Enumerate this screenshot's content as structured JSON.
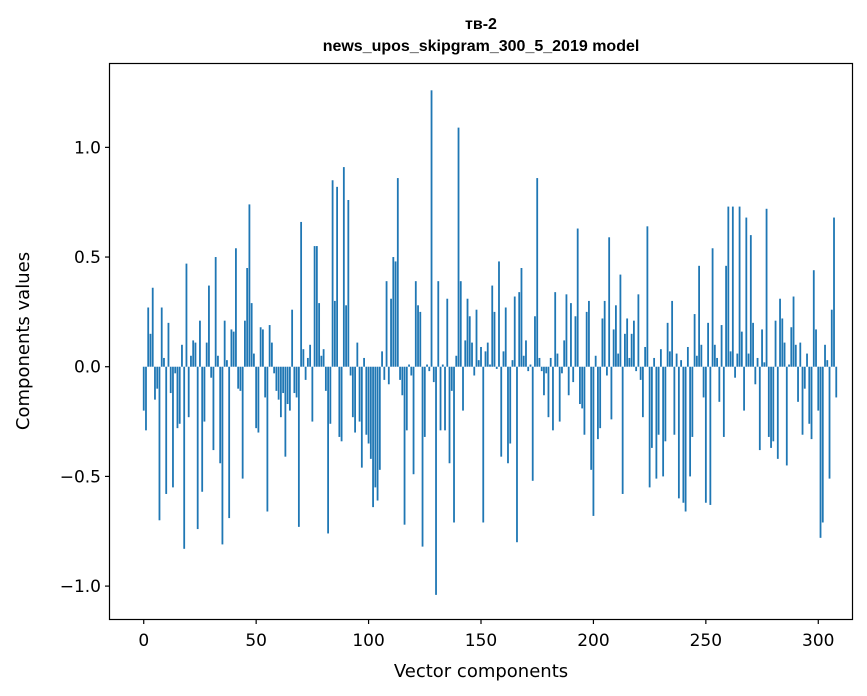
{
  "chart_data": {
    "type": "bar",
    "title": "тв-2",
    "subtitle": "news_upos_skipgram_300_5_2019 model",
    "xlabel": "Vector components",
    "ylabel": "Components values",
    "xlim": [
      -15,
      315
    ],
    "ylim": [
      -1.15,
      1.38
    ],
    "grid": false,
    "bar_color": "#1f77b4",
    "x_ticks": [
      0,
      50,
      100,
      150,
      200,
      250,
      300
    ],
    "x_tick_labels": [
      "0",
      "50",
      "100",
      "150",
      "200",
      "250",
      "300"
    ],
    "y_ticks": [
      -1.0,
      -0.5,
      0.0,
      0.5,
      1.0
    ],
    "y_tick_labels": [
      "−1.0",
      "−0.5",
      "0.0",
      "0.5",
      "1.0"
    ],
    "values": [
      -0.2,
      -0.29,
      0.27,
      0.15,
      0.36,
      -0.15,
      -0.1,
      -0.7,
      0.27,
      0.04,
      -0.58,
      0.2,
      -0.12,
      -0.55,
      -0.03,
      -0.28,
      -0.26,
      0.1,
      -0.83,
      0.47,
      -0.23,
      0.05,
      0.12,
      0.11,
      -0.74,
      0.21,
      -0.57,
      -0.25,
      0.11,
      0.37,
      -0.05,
      -0.38,
      0.5,
      0.05,
      -0.44,
      -0.81,
      0.21,
      0.03,
      -0.69,
      0.17,
      0.16,
      0.54,
      -0.1,
      -0.11,
      -0.51,
      0.21,
      0.45,
      0.74,
      0.29,
      0.06,
      -0.28,
      -0.3,
      0.18,
      0.17,
      -0.14,
      -0.66,
      0.19,
      0.11,
      -0.03,
      -0.11,
      -0.15,
      -0.23,
      -0.12,
      -0.41,
      -0.17,
      -0.2,
      0.26,
      -0.12,
      -0.14,
      -0.73,
      0.66,
      0.08,
      -0.06,
      0.04,
      0.1,
      -0.25,
      0.55,
      0.55,
      0.29,
      0.05,
      0.08,
      -0.11,
      -0.76,
      -0.26,
      0.85,
      0.3,
      0.82,
      -0.32,
      -0.34,
      0.91,
      0.28,
      0.76,
      -0.04,
      -0.23,
      -0.3,
      0.11,
      -0.25,
      -0.46,
      0.04,
      -0.31,
      -0.35,
      -0.42,
      -0.64,
      -0.55,
      -0.61,
      -0.47,
      0.07,
      -0.06,
      0.39,
      -0.08,
      0.31,
      0.5,
      0.48,
      0.86,
      -0.06,
      -0.13,
      -0.72,
      -0.29,
      0.01,
      -0.04,
      -0.49,
      0.39,
      0.28,
      0.25,
      -0.82,
      -0.32,
      0.01,
      -0.02,
      1.26,
      -0.07,
      -1.04,
      0.39,
      -0.29,
      0.01,
      -0.29,
      0.31,
      -0.44,
      -0.11,
      -0.71,
      0.05,
      1.09,
      0.39,
      -0.2,
      0.12,
      0.31,
      0.23,
      0.11,
      -0.04,
      0.26,
      0.03,
      0.09,
      -0.71,
      0.07,
      0.11,
      0.01,
      0.37,
      0.25,
      -0.01,
      0.48,
      -0.41,
      0.07,
      0.27,
      -0.44,
      -0.35,
      0.03,
      0.32,
      -0.8,
      0.34,
      0.45,
      0.05,
      0.12,
      -0.02,
      0.01,
      -0.52,
      0.23,
      0.86,
      0.04,
      -0.02,
      -0.13,
      -0.03,
      -0.23,
      0.04,
      -0.29,
      0.34,
      0.06,
      -0.25,
      -0.03,
      0.12,
      0.33,
      -0.13,
      0.29,
      -0.07,
      0.23,
      0.63,
      -0.17,
      -0.19,
      -0.31,
      0.25,
      0.3,
      -0.47,
      -0.68,
      0.05,
      -0.33,
      -0.28,
      0.22,
      0.3,
      -0.04,
      0.59,
      -0.24,
      0.17,
      0.28,
      0.06,
      0.42,
      -0.58,
      0.15,
      0.22,
      0.04,
      0.15,
      0.21,
      -0.02,
      0.33,
      -0.06,
      -0.23,
      0.09,
      0.64,
      -0.55,
      -0.37,
      0.04,
      -0.51,
      -0.31,
      0.08,
      -0.5,
      -0.34,
      0.2,
      0.07,
      0.3,
      -0.31,
      0.06,
      -0.6,
      0.03,
      -0.62,
      -0.66,
      0.09,
      -0.5,
      -0.32,
      0.24,
      0.05,
      0.46,
      0.1,
      -0.14,
      -0.62,
      0.2,
      -0.63,
      0.54,
      0.1,
      0.04,
      -0.16,
      0.19,
      -0.32,
      0.46,
      0.73,
      0.07,
      0.73,
      -0.05,
      0.06,
      0.73,
      0.16,
      -0.2,
      0.68,
      0.06,
      0.6,
      0.2,
      -0.08,
      0.04,
      -0.38,
      0.17,
      0.02,
      0.72,
      -0.32,
      -0.37,
      -0.34,
      0.21,
      -0.42,
      0.31,
      0.22,
      0.11,
      -0.45,
      0.01,
      0.18,
      0.32,
      0.1,
      -0.16,
      0.11,
      -0.31,
      -0.1,
      0.06,
      -0.26,
      -0.33,
      0.44,
      0.17,
      -0.2,
      -0.78,
      -0.71,
      0.1,
      0.03,
      -0.51,
      0.26,
      0.68,
      -0.14
    ]
  }
}
